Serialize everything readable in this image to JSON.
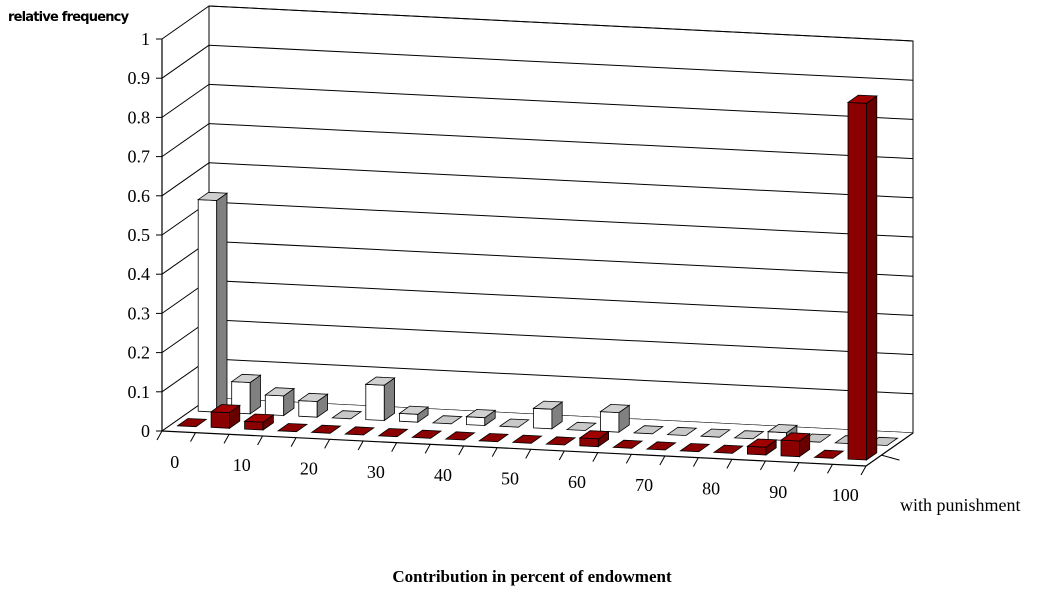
{
  "chart_data": {
    "type": "bar",
    "title": "",
    "ylabel": "relative frequency",
    "xlabel": "Contribution in percent of endowment",
    "ylim": [
      0,
      1
    ],
    "y_ticks": [
      "0",
      "0.1",
      "0.2",
      "0.3",
      "0.4",
      "0.5",
      "0.6",
      "0.7",
      "0.8",
      "0.9",
      "1"
    ],
    "x_tick_labels": [
      "0",
      "10",
      "20",
      "30",
      "40",
      "50",
      "60",
      "70",
      "80",
      "90",
      "100"
    ],
    "categories": [
      "0",
      "5",
      "10",
      "15",
      "20",
      "25",
      "30",
      "35",
      "40",
      "45",
      "50",
      "55",
      "60",
      "65",
      "70",
      "75",
      "80",
      "85",
      "90",
      "95",
      "100"
    ],
    "series": [
      {
        "name": "with punishment",
        "color": "#8B0000",
        "values": [
          0.0,
          0.04,
          0.02,
          0.0,
          0.0,
          0.0,
          0.0,
          0.0,
          0.0,
          0.0,
          0.0,
          0.0,
          0.02,
          0.0,
          0.0,
          0.0,
          0.0,
          0.02,
          0.04,
          0.0,
          0.91
        ]
      },
      {
        "name": "",
        "color": "#ffffff",
        "values": [
          0.54,
          0.08,
          0.05,
          0.04,
          0.0,
          0.09,
          0.02,
          0.0,
          0.02,
          0.0,
          0.05,
          0.0,
          0.05,
          0.0,
          0.0,
          0.0,
          0.0,
          0.02,
          0.0,
          0.0,
          0.0
        ]
      }
    ],
    "grid": true,
    "legend": "none"
  }
}
